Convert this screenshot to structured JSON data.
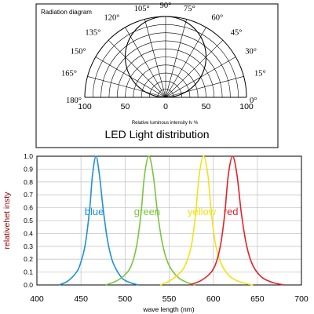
{
  "chart_data": [
    {
      "type": "polar",
      "panel_title": "Radiation diagram",
      "title": "LED Light distribution",
      "xlabel": "Relative luminous intensity Iv %",
      "radial_range": [
        0,
        100
      ],
      "radial_ticks": [
        0,
        25,
        50,
        75,
        100
      ],
      "radial_tick_labels": [
        "100",
        "50",
        "0",
        "50",
        "100"
      ],
      "angle_range": [
        0,
        180
      ],
      "angle_ticks": [
        0,
        15,
        30,
        45,
        60,
        75,
        90,
        105,
        120,
        135,
        150,
        165,
        180
      ],
      "angle_labels": [
        "0°",
        "15°",
        "30°",
        "45°",
        "60°",
        "75°",
        "90°",
        "105°",
        "120°",
        "135°",
        "150°",
        "165°",
        "180°"
      ],
      "pattern": "lambertian: relative intensity = 100·sin(angle) for angle 0°–180°"
    },
    {
      "type": "line",
      "xlabel": "wave length (nm)",
      "ylabel": "relativehet insty",
      "xlim": [
        400,
        700
      ],
      "ylim": [
        0,
        1.0
      ],
      "x_ticks": [
        400,
        450,
        500,
        550,
        600,
        650,
        700
      ],
      "y_ticks": [
        0.0,
        0.1,
        0.2,
        0.3,
        0.4,
        0.5,
        0.6,
        0.7,
        0.8,
        0.9,
        1.0
      ],
      "y_tick_labels": [
        "0.0",
        "0.1",
        "0.2",
        "0.3",
        "0.4",
        "0.5",
        "0.6",
        "0.7",
        "0.8",
        "0.9",
        "1.0"
      ],
      "grid": true,
      "series": [
        {
          "name": "blue",
          "color": "#1f8fd6",
          "x": [
            425,
            435,
            445,
            450,
            455,
            460,
            463,
            467,
            471,
            475,
            480,
            485,
            490,
            497,
            505,
            515
          ],
          "y": [
            0.0,
            0.03,
            0.1,
            0.18,
            0.32,
            0.6,
            0.85,
            1.0,
            0.85,
            0.6,
            0.35,
            0.2,
            0.12,
            0.05,
            0.02,
            0.0
          ]
        },
        {
          "name": "green",
          "color": "#7cc43c",
          "x": [
            478,
            490,
            500,
            507,
            513,
            518,
            522,
            527,
            532,
            537,
            543,
            550,
            560,
            570,
            580
          ],
          "y": [
            0.0,
            0.03,
            0.08,
            0.15,
            0.3,
            0.55,
            0.85,
            1.0,
            0.85,
            0.55,
            0.3,
            0.15,
            0.06,
            0.02,
            0.0
          ]
        },
        {
          "name": "yellow",
          "color": "#f2e21a",
          "x": [
            540,
            550,
            560,
            568,
            575,
            580,
            584,
            589,
            594,
            598,
            603,
            610,
            620,
            632,
            645
          ],
          "y": [
            0.0,
            0.03,
            0.08,
            0.15,
            0.3,
            0.55,
            0.85,
            1.0,
            0.85,
            0.55,
            0.3,
            0.15,
            0.06,
            0.02,
            0.0
          ]
        },
        {
          "name": "red",
          "color": "#e0222a",
          "x": [
            573,
            585,
            595,
            602,
            608,
            613,
            617,
            622,
            627,
            632,
            638,
            645,
            655,
            667,
            680
          ],
          "y": [
            0.0,
            0.03,
            0.08,
            0.15,
            0.3,
            0.55,
            0.85,
            1.0,
            0.85,
            0.55,
            0.3,
            0.15,
            0.06,
            0.02,
            0.0
          ]
        }
      ]
    }
  ]
}
